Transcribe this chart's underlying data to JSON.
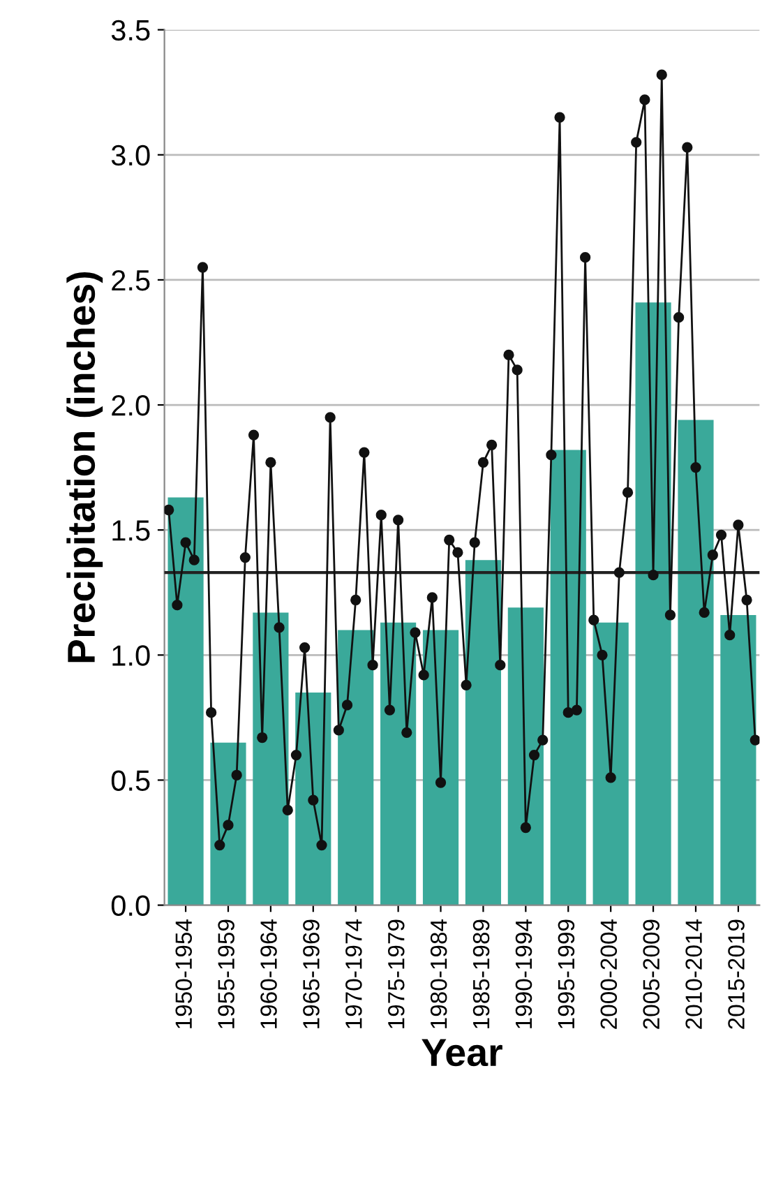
{
  "chart_data": [
    {
      "type": "bar",
      "xlabel": "Year",
      "ylabel": "Precipitation (inches)",
      "categories": [
        "1950-1954",
        "1955-1959",
        "1960-1964",
        "1965-1969",
        "1970-1974",
        "1975-1979",
        "1980-1984",
        "1985-1989",
        "1990-1994",
        "1995-1999",
        "2000-2004",
        "2005-2009",
        "2010-2014",
        "2015-2019"
      ],
      "series": [
        {
          "type": "bar",
          "color": "#3aa99a",
          "values": [
            1.63,
            0.65,
            1.17,
            0.85,
            1.1,
            1.13,
            1.1,
            1.38,
            1.19,
            1.82,
            1.13,
            2.41,
            1.94,
            1.16
          ]
        }
      ],
      "ylim": [
        0,
        3.5
      ],
      "yticks": [
        {
          "value": 0,
          "label": "0.0"
        },
        {
          "value": 0.5,
          "label": "0.5"
        },
        {
          "value": 1,
          "label": "1.0"
        },
        {
          "value": 1.5,
          "label": "1.5"
        },
        {
          "value": 2,
          "label": "2.0"
        },
        {
          "value": 2.5,
          "label": "2.5"
        },
        {
          "value": 3,
          "label": "3.0"
        },
        {
          "value": 3.5,
          "label": "3.5"
        }
      ],
      "ref_lines": [
        {
          "axis": "y",
          "value": 1.33,
          "color": "#222222"
        }
      ],
      "grid": "y"
    },
    {
      "type": "line",
      "categories": [
        null,
        null,
        null,
        null,
        null,
        null,
        null,
        null,
        null,
        null,
        null,
        null,
        null,
        null,
        null,
        null,
        null,
        null,
        null,
        null,
        null,
        null,
        null,
        null,
        null,
        null,
        null,
        null,
        null,
        null,
        null,
        null,
        null,
        null,
        null,
        null,
        null,
        null,
        null,
        null,
        null,
        null,
        null,
        null,
        null,
        null,
        null,
        null,
        null,
        null,
        null,
        null,
        null,
        null,
        null,
        null,
        null,
        null,
        null,
        null,
        null,
        null,
        null,
        null,
        null,
        null,
        null,
        null,
        null,
        null
      ],
      "series": [
        {
          "color": "#111111",
          "marker": "circle",
          "line_style": "solid",
          "values": [
            1.58,
            1.2,
            1.45,
            1.38,
            2.55,
            0.77,
            0.24,
            0.32,
            0.52,
            1.39,
            1.88,
            0.67,
            1.77,
            1.11,
            0.38,
            0.6,
            1.03,
            0.42,
            0.24,
            1.95,
            0.7,
            0.8,
            1.22,
            1.81,
            0.96,
            1.56,
            0.78,
            1.54,
            0.69,
            1.09,
            0.92,
            1.23,
            0.49,
            1.46,
            1.41,
            0.88,
            1.45,
            1.77,
            1.84,
            0.96,
            2.2,
            2.14,
            0.31,
            0.6,
            0.66,
            1.8,
            3.15,
            0.77,
            0.78,
            2.59,
            1.14,
            1.0,
            0.51,
            1.33,
            1.65,
            3.05,
            3.22,
            1.32,
            3.32,
            1.16,
            2.35,
            3.03,
            1.75,
            1.17,
            1.4,
            1.48,
            1.08,
            1.52,
            1.22,
            0.66
          ]
        }
      ],
      "ylim": [
        0,
        3.5
      ],
      "tick_labels": false
    }
  ]
}
